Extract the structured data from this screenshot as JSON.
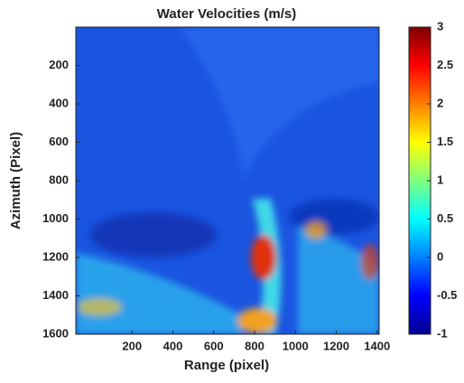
{
  "chart_data": {
    "type": "heatmap",
    "title": "Water Velocities (m/s)",
    "x_label": "Range (pixel)",
    "y_label": "Azimuth (Pixel)",
    "xlim": [
      -75,
      1410
    ],
    "xticks": [
      200,
      400,
      600,
      800,
      1000,
      1200,
      1400
    ],
    "ylim": [
      0,
      1600
    ],
    "yticks": [
      200,
      400,
      600,
      800,
      1000,
      1200,
      1400,
      1600
    ],
    "colorbar_lim": [
      -1,
      3
    ],
    "colorbar_ticks": [
      -1,
      -0.5,
      0,
      0.5,
      1,
      1.5,
      2,
      2.5,
      3
    ]
  }
}
